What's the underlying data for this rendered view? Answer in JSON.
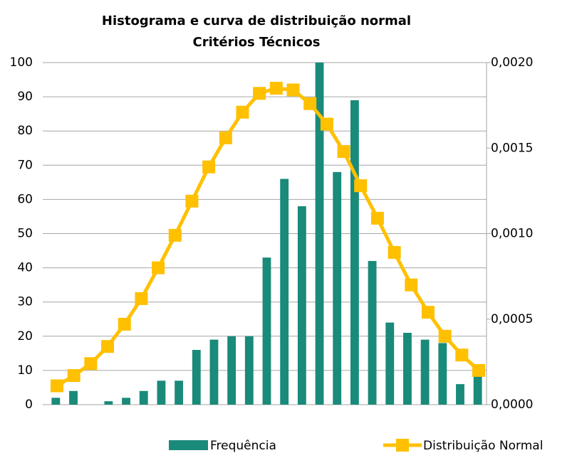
{
  "chart_data": {
    "type": "bar_line",
    "title": [
      "Histograma e curva de distribuição normal",
      "Critérios Técnicos"
    ],
    "ylim": [
      0,
      100
    ],
    "yticks": [
      0,
      10,
      20,
      30,
      40,
      50,
      60,
      70,
      80,
      90,
      100
    ],
    "y2lim": [
      0,
      0.002
    ],
    "y2ticks": [
      {
        "value": 0,
        "label": "0,0000"
      },
      {
        "value": 0.0005,
        "label": "0,0005"
      },
      {
        "value": 0.001,
        "label": "0,0010"
      },
      {
        "value": 0.0015,
        "label": "0,0015"
      },
      {
        "value": 0.002,
        "label": "0,0020"
      }
    ],
    "grid": true,
    "series": [
      {
        "name": "Frequência",
        "type": "bar",
        "color": "#1a8a7a",
        "values": [
          2,
          4,
          0,
          1,
          2,
          4,
          7,
          7,
          16,
          19,
          20,
          20,
          43,
          66,
          58,
          100,
          68,
          89,
          42,
          24,
          21,
          19,
          18,
          6,
          10
        ]
      },
      {
        "name": "Distribuição Normal",
        "type": "line",
        "axis": "y2",
        "color": "#ffc000",
        "values": [
          0.00011,
          0.00017,
          0.00024,
          0.00034,
          0.00047,
          0.00062,
          0.0008,
          0.00099,
          0.00119,
          0.00139,
          0.00156,
          0.00171,
          0.00182,
          0.00185,
          0.00184,
          0.00176,
          0.00164,
          0.00148,
          0.00128,
          0.00109,
          0.00089,
          0.0007,
          0.00054,
          0.0004,
          0.00029,
          0.0002
        ]
      }
    ],
    "legend": "bottom"
  }
}
